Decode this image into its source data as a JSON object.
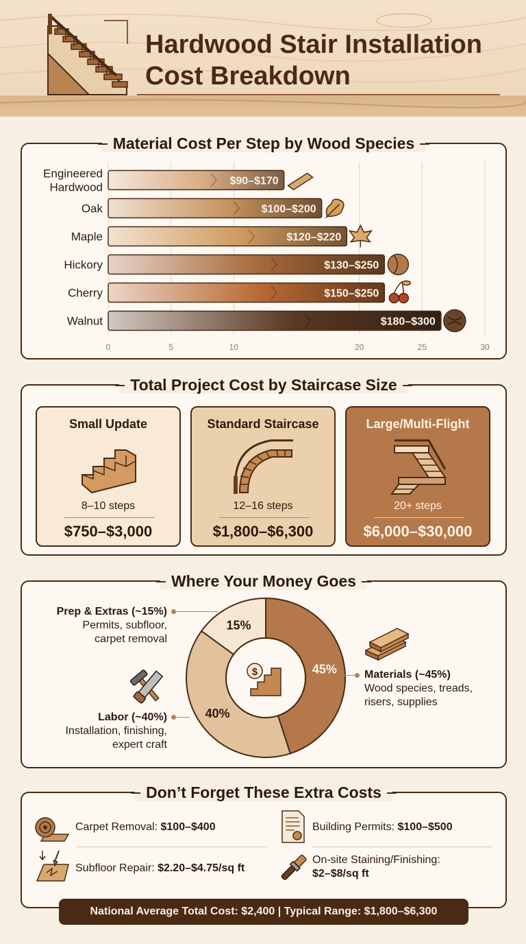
{
  "header": {
    "title_line1": "Hardwood Stair Installation",
    "title_line2": "Cost Breakdown"
  },
  "chart_data": {
    "type": "bar",
    "title": "Material Cost Per Step by Wood Species",
    "categories": [
      "Engineered Hardwood",
      "Oak",
      "Maple",
      "Hickory",
      "Cherry",
      "Walnut"
    ],
    "category_lines": [
      [
        "Engineered",
        "Hardwood"
      ],
      [
        "Oak"
      ],
      [
        "Maple"
      ],
      [
        "Hickory"
      ],
      [
        "Cherry"
      ],
      [
        "Walnut"
      ]
    ],
    "values": [
      14,
      17,
      19,
      22,
      22,
      26.5
    ],
    "value_labels": [
      "$90–$170",
      "$100–$200",
      "$120–$220",
      "$130–$250",
      "$150–$250",
      "$180–$300"
    ],
    "icons": [
      "wood-plank-icon",
      "oak-leaf-icon",
      "maple-leaf-icon",
      "hickory-nut-icon",
      "cherry-icon",
      "walnut-icon"
    ],
    "colors": [
      "#d8ab82",
      "#c8935f",
      "#d09a60",
      "#a5683a",
      "#b86a34",
      "#5a3a24"
    ],
    "xlim": [
      0,
      30
    ],
    "xticks": [
      0,
      5,
      10,
      20,
      25,
      30
    ],
    "grid": true
  },
  "sizes": {
    "title": "Total Project Cost by Staircase Size",
    "tiers": [
      {
        "name": "Small Update",
        "steps": "8–10 steps",
        "price": "$750–$3,000",
        "icon": "small-stair-icon"
      },
      {
        "name": "Standard Staircase",
        "steps": "12–16 steps",
        "price": "$1,800–$6,300",
        "icon": "curved-stair-icon"
      },
      {
        "name": "Large/Multi-Flight",
        "steps": "20+ steps",
        "price": "$6,000–$30,000",
        "icon": "multi-flight-stair-icon"
      }
    ]
  },
  "money": {
    "title": "Where Your Money Goes",
    "slices": [
      {
        "label": "Materials (~45%)",
        "desc1": "Wood species, treads,",
        "desc2": "risers, supplies",
        "pct": 45,
        "pct_label": "45%",
        "color": "#b5784a"
      },
      {
        "label": "Labor (~40%)",
        "desc1": "Installation, finishing,",
        "desc2": "expert craft",
        "pct": 40,
        "pct_label": "40%",
        "color": "#e2c29c"
      },
      {
        "label": "Prep & Extras (~15%)",
        "desc1": "Permits, subfloor,",
        "desc2": "carpet removal",
        "pct": 15,
        "pct_label": "15%",
        "color": "#f6e7d3"
      }
    ],
    "center_icon": "dollar-stair-icon"
  },
  "extras": {
    "title": "Don’t Forget These Extra Costs",
    "items": [
      {
        "label": "Carpet Removal: ",
        "value": "$100–$400",
        "icon": "carpet-roll-icon"
      },
      {
        "label": "Building Permits: ",
        "value": "$100–$500",
        "icon": "permit-document-icon"
      },
      {
        "label": "Subfloor Repair: ",
        "value": "$2.20–$4.75/sq ft",
        "icon": "subfloor-repair-icon"
      },
      {
        "label": "On-site Staining/Finishing:",
        "value": "$2–$8/sq ft",
        "icon": "paint-brush-icon"
      }
    ]
  },
  "footer": {
    "text": "National Average Total Cost: $2,400 | Typical Range: $1,800–$6,300"
  }
}
